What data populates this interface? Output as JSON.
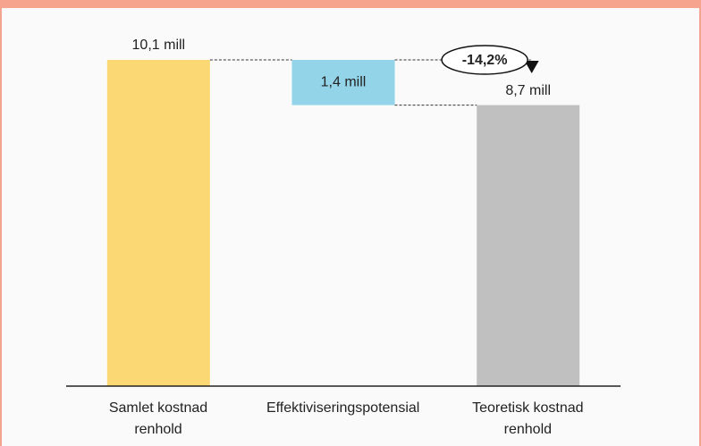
{
  "chart_data": {
    "type": "waterfall",
    "categories": [
      "Samlet kostnad renhold",
      "Effektiviseringspotensial",
      "Teoretisk kostnad renhold"
    ],
    "measures": [
      "total",
      "decrease",
      "total"
    ],
    "values": [
      10.1,
      1.4,
      8.7
    ],
    "value_labels": [
      "10,1 mill",
      "1,4 mill",
      "8,7 mill"
    ],
    "colors": [
      "#fcd875",
      "#93d4e8",
      "#c0c0c0"
    ],
    "annotation": "-14,2%"
  }
}
